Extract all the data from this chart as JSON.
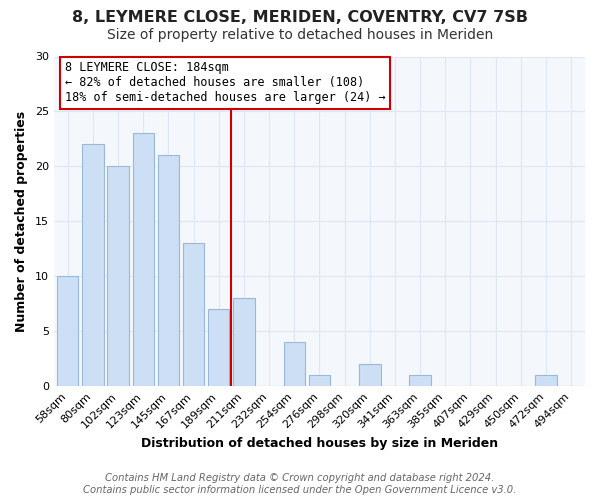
{
  "title": "8, LEYMERE CLOSE, MERIDEN, COVENTRY, CV7 7SB",
  "subtitle": "Size of property relative to detached houses in Meriden",
  "xlabel": "Distribution of detached houses by size in Meriden",
  "ylabel": "Number of detached properties",
  "bar_labels": [
    "58sqm",
    "80sqm",
    "102sqm",
    "123sqm",
    "145sqm",
    "167sqm",
    "189sqm",
    "211sqm",
    "232sqm",
    "254sqm",
    "276sqm",
    "298sqm",
    "320sqm",
    "341sqm",
    "363sqm",
    "385sqm",
    "407sqm",
    "429sqm",
    "450sqm",
    "472sqm",
    "494sqm"
  ],
  "bar_values": [
    10,
    22,
    20,
    23,
    21,
    13,
    7,
    8,
    0,
    4,
    1,
    0,
    2,
    0,
    1,
    0,
    0,
    0,
    0,
    1,
    0
  ],
  "bar_color": "#ccdff4",
  "bar_edge_color": "#9ab8d8",
  "vline_index": 6,
  "vline_color": "#cc0000",
  "ylim": [
    0,
    30
  ],
  "yticks": [
    0,
    5,
    10,
    15,
    20,
    25,
    30
  ],
  "annotation_title": "8 LEYMERE CLOSE: 184sqm",
  "annotation_line1": "← 82% of detached houses are smaller (108)",
  "annotation_line2": "18% of semi-detached houses are larger (24) →",
  "footer_line1": "Contains HM Land Registry data © Crown copyright and database right 2024.",
  "footer_line2": "Contains public sector information licensed under the Open Government Licence v3.0.",
  "background_color": "#f4f7fc",
  "plot_bg_color": "#f4f7fc",
  "grid_color": "#dce8f5",
  "title_fontsize": 11.5,
  "subtitle_fontsize": 10,
  "axis_label_fontsize": 9,
  "tick_fontsize": 8,
  "annotation_fontsize": 8.5,
  "footer_fontsize": 7.2
}
